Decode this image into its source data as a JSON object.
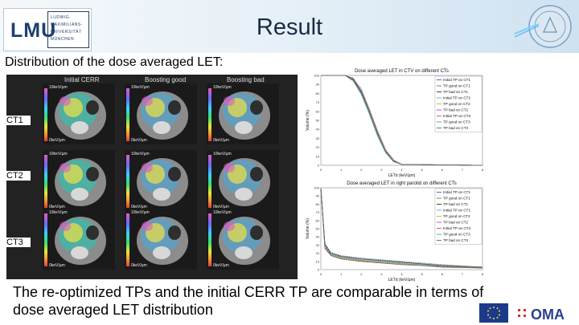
{
  "header": {
    "logo_text": "LMU",
    "logo_lines": [
      "LUDWIG-",
      "MAXIMILIANS-",
      "UNIVERSITÄT",
      "MÜNCHEN"
    ],
    "title": "Result"
  },
  "subtitle": "Distribution of the dose averaged LET:",
  "image_grid": {
    "columns": [
      "Initial CERR",
      "Boosting good",
      "Boosting bad"
    ],
    "rows": [
      "CT1",
      "CT2",
      "CT3"
    ],
    "colorbar_max": "10keV/µm",
    "colorbar_min": "0keV/µm"
  },
  "chart_data": [
    {
      "type": "line",
      "title": "Dose averaged LET in CTV on different CTs",
      "xlabel": "LETd (keV/µm)",
      "ylabel": "Volume (%)",
      "xlim": [
        0,
        8
      ],
      "ylim": [
        0,
        100
      ],
      "x_ticks": [
        "0",
        "1",
        "2",
        "3",
        "4",
        "5",
        "6",
        "7",
        "8"
      ],
      "y_ticks": [
        "0",
        "10",
        "20",
        "30",
        "40",
        "50",
        "60",
        "70",
        "80",
        "90",
        "100"
      ],
      "legend": [
        "Initial TP on CT1",
        "TP good on CT1",
        "TP bad on CT1",
        "Initial TP on CT2",
        "TP good on CT2",
        "TP bad on CT2",
        "Initial TP on CT3",
        "TP good on CT3",
        "TP bad on CT3"
      ],
      "colors": [
        "#1f3fd0",
        "#2a8a2a",
        "#111111",
        "#2fb0b0",
        "#b0b020",
        "#7a3ad0",
        "#d04040",
        "#20a060",
        "#555555"
      ],
      "series": [
        {
          "name": "Initial TP on CT1",
          "x": [
            0,
            1.2,
            1.6,
            2.0,
            2.4,
            2.8,
            3.2,
            3.6,
            4.0,
            8
          ],
          "y": [
            100,
            100,
            96,
            82,
            60,
            36,
            16,
            5,
            1,
            0
          ]
        },
        {
          "name": "TP good on CT1",
          "x": [
            0,
            1.2,
            1.6,
            2.0,
            2.4,
            2.8,
            3.2,
            3.6,
            4.0,
            8
          ],
          "y": [
            100,
            100,
            95,
            80,
            58,
            34,
            15,
            5,
            1,
            0
          ]
        },
        {
          "name": "TP bad on CT1",
          "x": [
            0,
            1.2,
            1.6,
            2.0,
            2.4,
            2.8,
            3.2,
            3.6,
            4.0,
            8
          ],
          "y": [
            100,
            100,
            97,
            84,
            62,
            38,
            17,
            6,
            1,
            0
          ]
        },
        {
          "name": "Initial TP on CT2",
          "x": [
            0,
            1.2,
            1.6,
            2.0,
            2.4,
            2.8,
            3.2,
            3.6,
            4.0,
            8
          ],
          "y": [
            100,
            100,
            94,
            79,
            57,
            33,
            14,
            4,
            1,
            0
          ]
        },
        {
          "name": "TP good on CT2",
          "x": [
            0,
            1.2,
            1.6,
            2.0,
            2.4,
            2.8,
            3.2,
            3.6,
            4.0,
            8
          ],
          "y": [
            100,
            100,
            95,
            81,
            59,
            35,
            15,
            5,
            1,
            0
          ]
        },
        {
          "name": "TP bad on CT2",
          "x": [
            0,
            1.2,
            1.6,
            2.0,
            2.4,
            2.8,
            3.2,
            3.6,
            4.0,
            8
          ],
          "y": [
            100,
            100,
            96,
            83,
            61,
            37,
            16,
            5,
            1,
            0
          ]
        },
        {
          "name": "Initial TP on CT3",
          "x": [
            0,
            1.2,
            1.6,
            2.0,
            2.4,
            2.8,
            3.2,
            3.6,
            4.0,
            8
          ],
          "y": [
            100,
            100,
            95,
            81,
            60,
            36,
            16,
            5,
            1,
            0
          ]
        },
        {
          "name": "TP good on CT3",
          "x": [
            0,
            1.2,
            1.6,
            2.0,
            2.4,
            2.8,
            3.2,
            3.6,
            4.0,
            8
          ],
          "y": [
            100,
            100,
            94,
            80,
            58,
            34,
            15,
            4,
            1,
            0
          ]
        },
        {
          "name": "TP bad on CT3",
          "x": [
            0,
            1.2,
            1.6,
            2.0,
            2.4,
            2.8,
            3.2,
            3.6,
            4.0,
            8
          ],
          "y": [
            100,
            100,
            97,
            85,
            63,
            39,
            18,
            6,
            1,
            0
          ]
        }
      ]
    },
    {
      "type": "line",
      "title": "Dose averaged LET in right parotid on different CTs",
      "xlabel": "LETd (keV/µm)",
      "ylabel": "Volume (%)",
      "xlim": [
        0,
        8
      ],
      "ylim": [
        0,
        100
      ],
      "x_ticks": [
        "0",
        "1",
        "2",
        "3",
        "4",
        "5",
        "6",
        "7",
        "8"
      ],
      "y_ticks": [
        "0",
        "10",
        "20",
        "30",
        "40",
        "50",
        "60",
        "70",
        "80",
        "90",
        "100"
      ],
      "legend": [
        "Initial TP on CT1",
        "TP good on CT1",
        "TP bad on CT1",
        "Initial TP on CT2",
        "TP good on CT2",
        "TP bad on CT2",
        "Initial TP on CT3",
        "TP good on CT3",
        "TP bad on CT3"
      ],
      "colors": [
        "#1f3fd0",
        "#2a8a2a",
        "#111111",
        "#2fb0b0",
        "#b0b020",
        "#7a3ad0",
        "#d04040",
        "#20a060",
        "#555555"
      ],
      "series": [
        {
          "name": "Initial TP on CT1",
          "x": [
            0,
            0.2,
            0.5,
            1.0,
            2.0,
            3.0,
            4.0,
            5.0,
            6.0,
            8
          ],
          "y": [
            100,
            30,
            20,
            16,
            13,
            11,
            9,
            7,
            5,
            3
          ]
        },
        {
          "name": "TP good on CT1",
          "x": [
            0,
            0.2,
            0.5,
            1.0,
            2.0,
            3.0,
            4.0,
            5.0,
            6.0,
            8
          ],
          "y": [
            100,
            28,
            19,
            15,
            12,
            10,
            8,
            6,
            4,
            2
          ]
        },
        {
          "name": "TP bad on CT1",
          "x": [
            0,
            0.2,
            0.5,
            1.0,
            2.0,
            3.0,
            4.0,
            5.0,
            6.0,
            8
          ],
          "y": [
            100,
            32,
            21,
            17,
            14,
            12,
            10,
            8,
            6,
            3
          ]
        },
        {
          "name": "Initial TP on CT2",
          "x": [
            0,
            0.2,
            0.5,
            1.0,
            2.0,
            3.0,
            4.0,
            5.0,
            6.0,
            8
          ],
          "y": [
            100,
            27,
            18,
            14,
            11,
            9,
            7,
            6,
            4,
            2
          ]
        },
        {
          "name": "TP good on CT2",
          "x": [
            0,
            0.2,
            0.5,
            1.0,
            2.0,
            3.0,
            4.0,
            5.0,
            6.0,
            8
          ],
          "y": [
            100,
            29,
            19,
            15,
            12,
            10,
            8,
            6,
            5,
            3
          ]
        },
        {
          "name": "TP bad on CT2",
          "x": [
            0,
            0.2,
            0.5,
            1.0,
            2.0,
            3.0,
            4.0,
            5.0,
            6.0,
            8
          ],
          "y": [
            100,
            31,
            20,
            16,
            13,
            11,
            9,
            7,
            5,
            3
          ]
        },
        {
          "name": "Initial TP on CT3",
          "x": [
            0,
            0.2,
            0.5,
            1.0,
            2.0,
            3.0,
            4.0,
            5.0,
            6.0,
            8
          ],
          "y": [
            100,
            26,
            17,
            13,
            10,
            8,
            6,
            5,
            3,
            2
          ]
        },
        {
          "name": "TP good on CT3",
          "x": [
            0,
            0.2,
            0.5,
            1.0,
            2.0,
            3.0,
            4.0,
            5.0,
            6.0,
            8
          ],
          "y": [
            100,
            28,
            18,
            14,
            11,
            9,
            7,
            5,
            4,
            2
          ]
        },
        {
          "name": "TP bad on CT3",
          "x": [
            0,
            0.2,
            0.5,
            1.0,
            2.0,
            3.0,
            4.0,
            5.0,
            6.0,
            8
          ],
          "y": [
            100,
            30,
            20,
            16,
            13,
            11,
            9,
            7,
            5,
            3
          ]
        }
      ]
    }
  ],
  "conclusion": [
    "The re-optimized TPs and the initial CERR TP are comparable in terms of",
    "dose averaged LET distribution"
  ],
  "footer": {
    "oma_text": "OMA"
  }
}
